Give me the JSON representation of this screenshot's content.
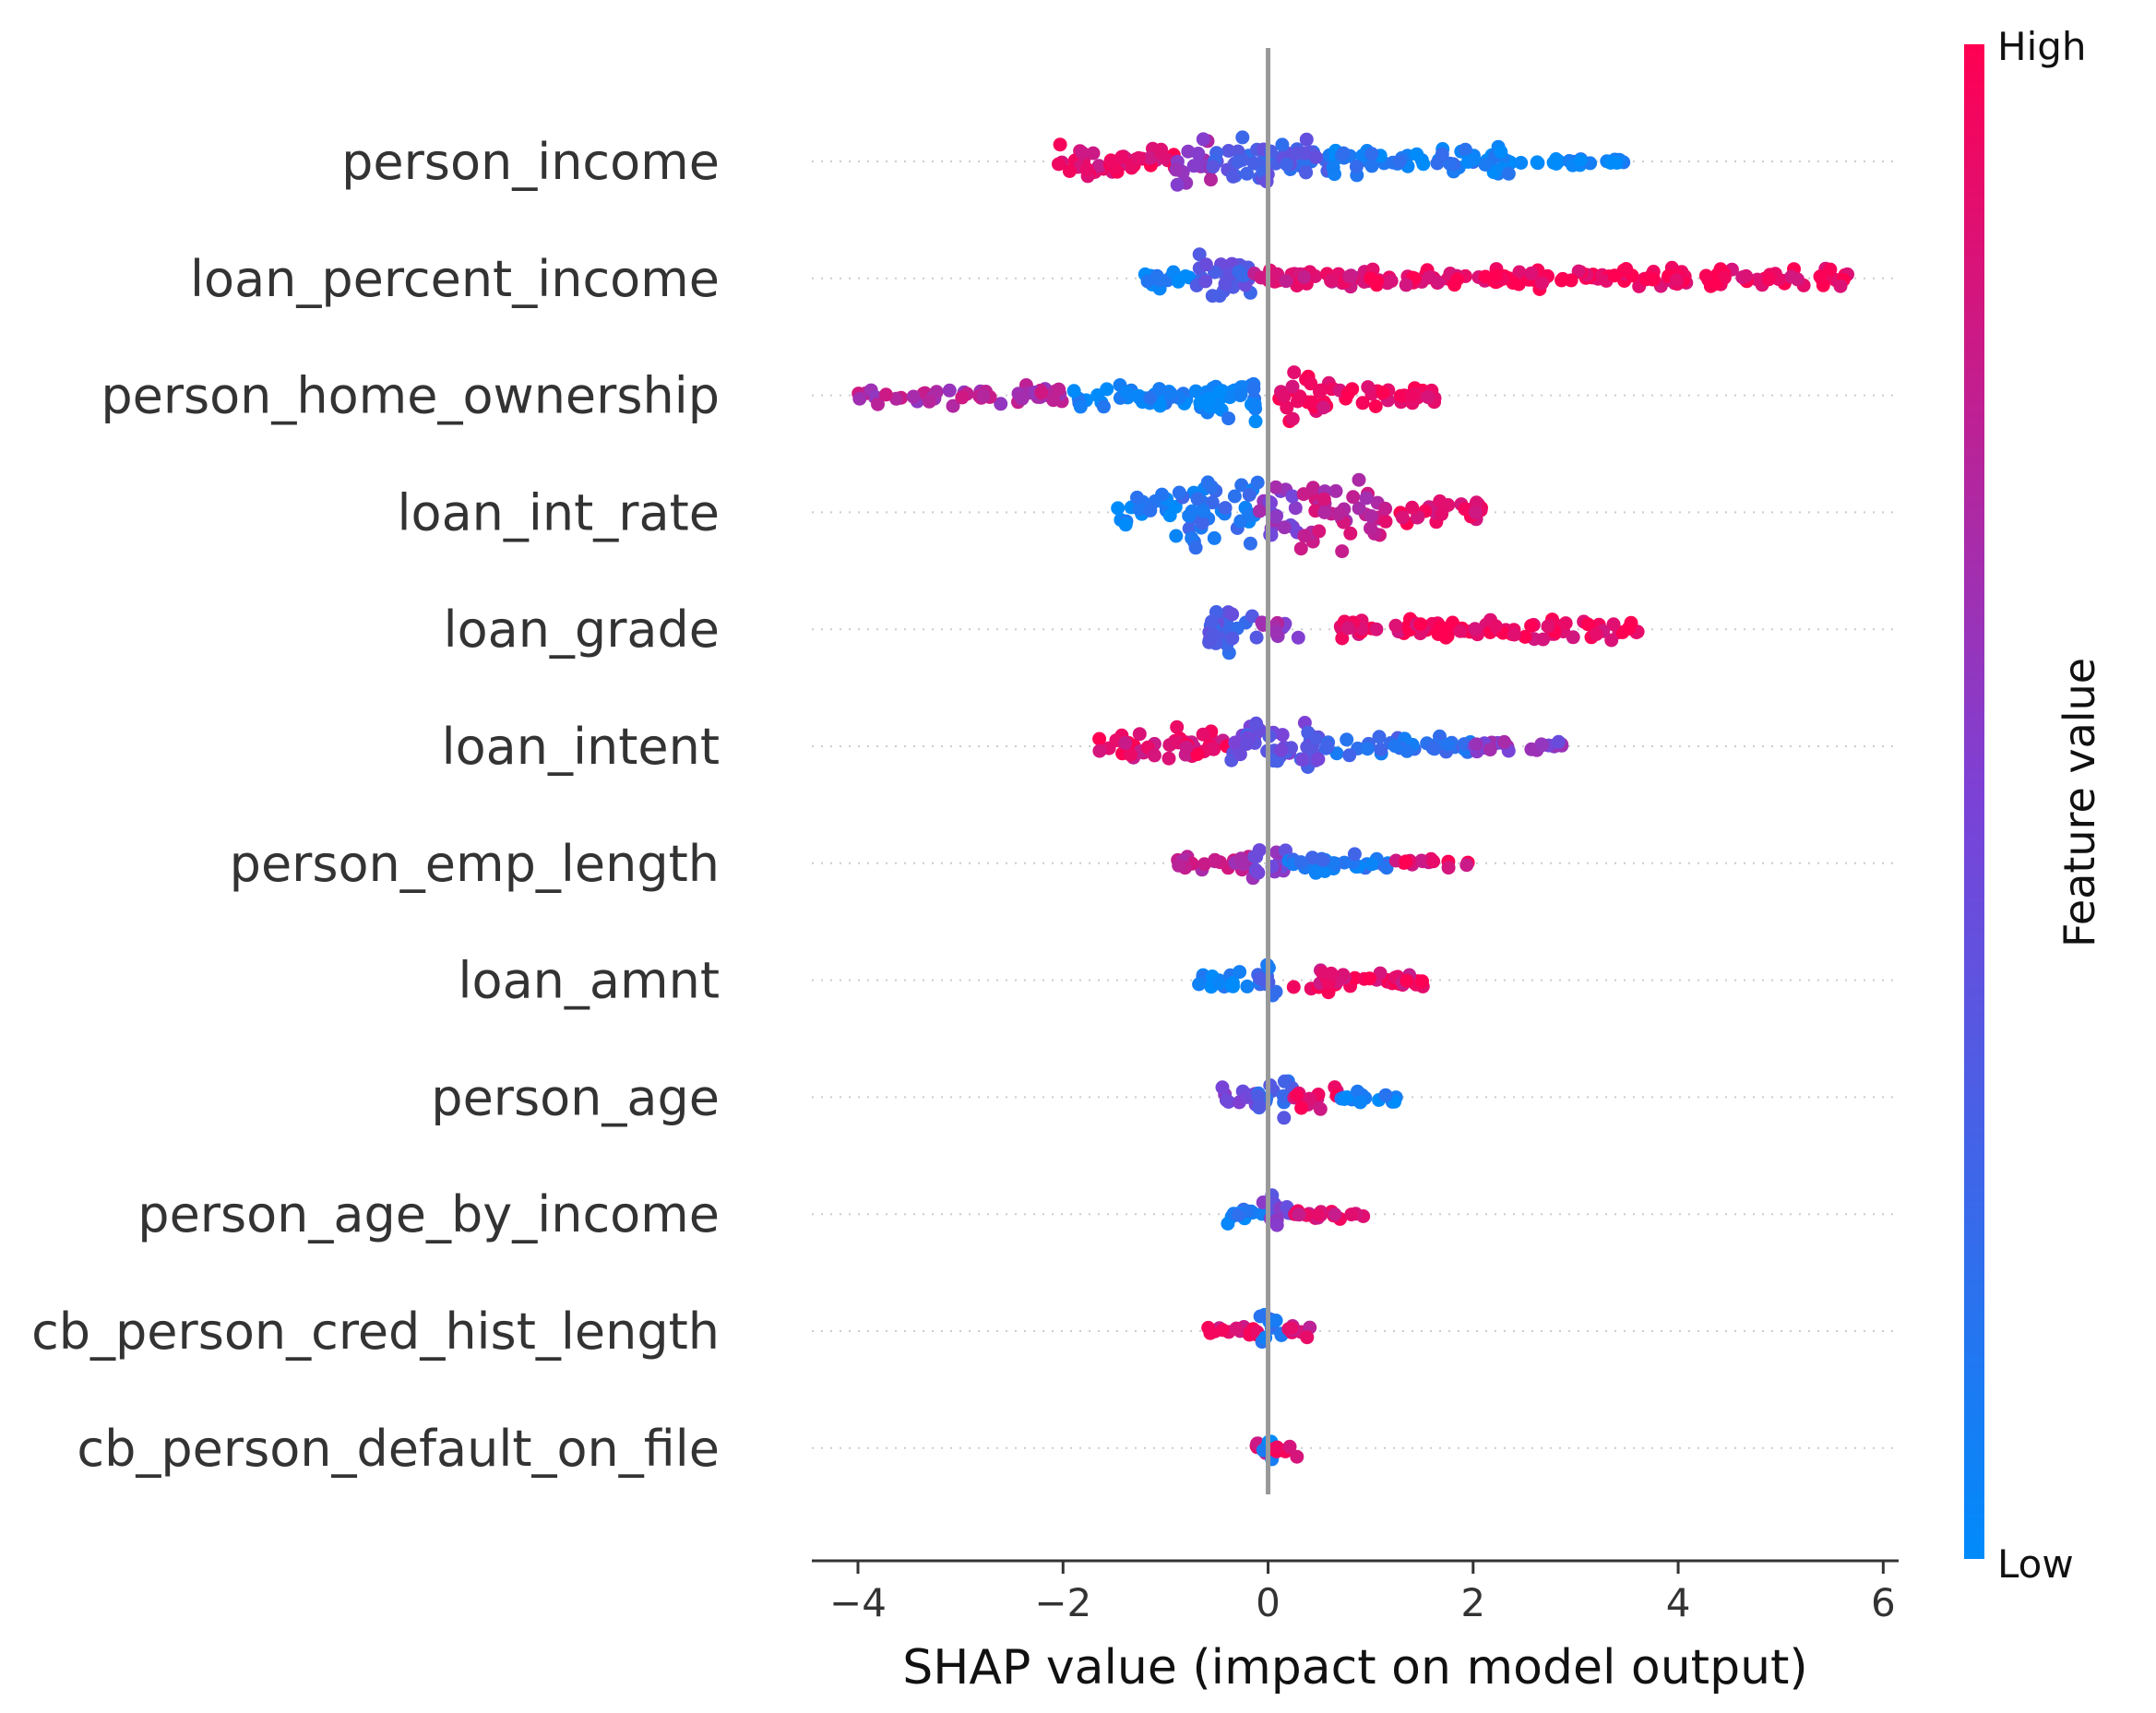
{
  "chart_data": {
    "type": "scatter",
    "subtype": "beeswarm",
    "title": "",
    "xlabel": "SHAP value (impact on model output)",
    "ylabel": "",
    "xlim": [
      -4.45,
      6.15
    ],
    "xticks": [
      -4,
      -2,
      0,
      2,
      4,
      6
    ],
    "xtick_labels": [
      "−4",
      "−2",
      "0",
      "2",
      "4",
      "6"
    ],
    "grid": false,
    "colorbar": {
      "title": "Feature value",
      "high_label": "High",
      "low_label": "Low",
      "high_color": "#ff0052",
      "mid_color": "#7b42d7",
      "low_color": "#008bfb"
    },
    "features": [
      {
        "name": "person_income",
        "min": -2.15,
        "max": 3.5,
        "spread": 0.55,
        "segments": [
          {
            "from": -2.15,
            "to": -0.9,
            "density": 0.7,
            "color": 0.9
          },
          {
            "from": -0.9,
            "to": -0.55,
            "density": 1.0,
            "color": 0.6
          },
          {
            "from": -0.55,
            "to": 0.6,
            "density": 1.0,
            "color": 0.3
          },
          {
            "from": 0.6,
            "to": 2.4,
            "density": 0.6,
            "color": 0.1
          },
          {
            "from": 2.4,
            "to": 3.5,
            "density": 0.25,
            "color": 0.05
          }
        ]
      },
      {
        "name": "loan_percent_income",
        "min": -1.2,
        "max": 5.7,
        "spread": 0.5,
        "segments": [
          {
            "from": -1.2,
            "to": -0.7,
            "density": 0.4,
            "color": 0.05
          },
          {
            "from": -0.7,
            "to": -0.15,
            "density": 1.0,
            "color": 0.35
          },
          {
            "from": -0.15,
            "to": 1.0,
            "density": 0.5,
            "color": 0.85
          },
          {
            "from": 1.0,
            "to": 5.7,
            "density": 0.45,
            "color": 0.95
          }
        ]
      },
      {
        "name": "person_home_ownership",
        "min": -4.0,
        "max": 1.65,
        "spread": 0.6,
        "segments": [
          {
            "from": -4.0,
            "to": -2.0,
            "density": 0.35,
            "color": 0.7
          },
          {
            "from": -2.0,
            "to": -0.3,
            "density": 0.45,
            "color": 0.05
          },
          {
            "from": -0.6,
            "to": -0.1,
            "density": 1.0,
            "color": 0.05
          },
          {
            "from": 0.1,
            "to": 0.65,
            "density": 1.0,
            "color": 0.95
          },
          {
            "from": 0.65,
            "to": 1.65,
            "density": 0.45,
            "color": 0.95
          }
        ]
      },
      {
        "name": "loan_int_rate",
        "min": -1.5,
        "max": 2.1,
        "spread": 0.85,
        "segments": [
          {
            "from": -1.5,
            "to": -0.9,
            "density": 0.5,
            "color": 0.05
          },
          {
            "from": -0.9,
            "to": -0.1,
            "density": 1.0,
            "color": 0.15
          },
          {
            "from": -0.1,
            "to": 0.3,
            "density": 1.0,
            "color": 0.55
          },
          {
            "from": 0.3,
            "to": 1.1,
            "density": 0.9,
            "color": 0.75
          },
          {
            "from": 1.1,
            "to": 2.1,
            "density": 0.4,
            "color": 0.9
          }
        ]
      },
      {
        "name": "loan_grade",
        "min": -0.6,
        "max": 3.7,
        "spread": 0.5,
        "segments": [
          {
            "from": -0.6,
            "to": -0.1,
            "density": 1.0,
            "color": 0.3
          },
          {
            "from": -0.1,
            "to": 0.3,
            "density": 0.35,
            "color": 0.6
          },
          {
            "from": 0.7,
            "to": 3.7,
            "density": 0.45,
            "color": 0.95
          }
        ]
      },
      {
        "name": "loan_intent",
        "min": -1.65,
        "max": 3.1,
        "spread": 0.6,
        "segments": [
          {
            "from": -1.65,
            "to": -0.4,
            "density": 0.65,
            "color": 0.9
          },
          {
            "from": -0.4,
            "to": 0.5,
            "density": 1.0,
            "color": 0.4
          },
          {
            "from": 0.5,
            "to": 2.0,
            "density": 0.45,
            "color": 0.2
          },
          {
            "from": 2.0,
            "to": 3.1,
            "density": 0.25,
            "color": 0.55
          }
        ]
      },
      {
        "name": "person_emp_length",
        "min": -0.9,
        "max": 1.95,
        "spread": 0.45,
        "segments": [
          {
            "from": -0.9,
            "to": -0.15,
            "density": 0.5,
            "color": 0.75
          },
          {
            "from": -0.15,
            "to": 0.2,
            "density": 1.0,
            "color": 0.5
          },
          {
            "from": 0.2,
            "to": 1.2,
            "density": 0.5,
            "color": 0.15
          },
          {
            "from": 1.2,
            "to": 1.95,
            "density": 0.25,
            "color": 0.9
          }
        ]
      },
      {
        "name": "loan_amnt",
        "min": -0.7,
        "max": 1.55,
        "spread": 0.45,
        "segments": [
          {
            "from": -0.7,
            "to": -0.1,
            "density": 0.45,
            "color": 0.05
          },
          {
            "from": -0.1,
            "to": 0.2,
            "density": 1.0,
            "color": 0.2
          },
          {
            "from": 0.2,
            "to": 1.55,
            "density": 0.5,
            "color": 0.9
          }
        ]
      },
      {
        "name": "person_age",
        "min": -0.45,
        "max": 1.25,
        "spread": 0.45,
        "segments": [
          {
            "from": -0.45,
            "to": -0.1,
            "density": 0.5,
            "color": 0.55
          },
          {
            "from": -0.1,
            "to": 0.25,
            "density": 1.0,
            "color": 0.25
          },
          {
            "from": 0.25,
            "to": 0.7,
            "density": 0.55,
            "color": 0.9
          },
          {
            "from": 0.7,
            "to": 1.25,
            "density": 0.35,
            "color": 0.05
          }
        ]
      },
      {
        "name": "person_age_by_income",
        "min": -0.4,
        "max": 0.95,
        "spread": 0.45,
        "segments": [
          {
            "from": -0.4,
            "to": -0.05,
            "density": 0.5,
            "color": 0.1
          },
          {
            "from": -0.05,
            "to": 0.25,
            "density": 1.0,
            "color": 0.45
          },
          {
            "from": 0.25,
            "to": 0.95,
            "density": 0.35,
            "color": 0.85
          }
        ]
      },
      {
        "name": "cb_person_cred_hist_length",
        "min": -0.6,
        "max": 0.5,
        "spread": 0.4,
        "segments": [
          {
            "from": -0.6,
            "to": -0.1,
            "density": 0.4,
            "color": 0.9
          },
          {
            "from": -0.1,
            "to": 0.15,
            "density": 1.0,
            "color": 0.2
          },
          {
            "from": 0.15,
            "to": 0.5,
            "density": 0.35,
            "color": 0.85
          }
        ]
      },
      {
        "name": "cb_person_default_on_file",
        "min": -0.15,
        "max": 0.3,
        "spread": 0.35,
        "segments": [
          {
            "from": -0.15,
            "to": 0.0,
            "density": 0.6,
            "color": 0.9
          },
          {
            "from": -0.05,
            "to": 0.05,
            "density": 1.0,
            "color": 0.05
          },
          {
            "from": 0.05,
            "to": 0.3,
            "density": 0.5,
            "color": 0.95
          }
        ]
      }
    ]
  }
}
